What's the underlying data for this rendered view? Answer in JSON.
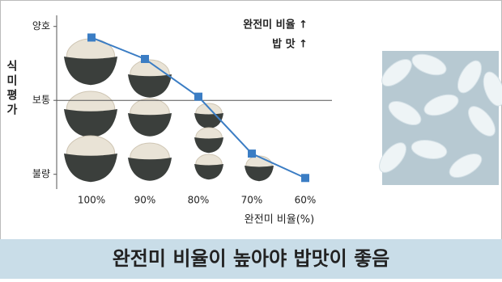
{
  "chart_data": {
    "type": "line",
    "y_label": "식미평가",
    "x_label": "완전미 비율(%)",
    "annotations": [
      "완전미 비율 ↑",
      "밥  맛 ↑"
    ],
    "caption": "완전미 비율이 높아야 밥맛이 좋음",
    "categories": [
      "100%",
      "90%",
      "80%",
      "70%",
      "60%"
    ],
    "values": [
      2.85,
      2.56,
      2.05,
      1.28,
      0.95
    ],
    "color": "#3b7dc4",
    "ylim": [
      0.8,
      3.15
    ],
    "yticks": [
      {
        "value": 3,
        "label": "양호"
      },
      {
        "value": 2,
        "label": "보통"
      },
      {
        "value": 1,
        "label": "불량"
      }
    ]
  }
}
